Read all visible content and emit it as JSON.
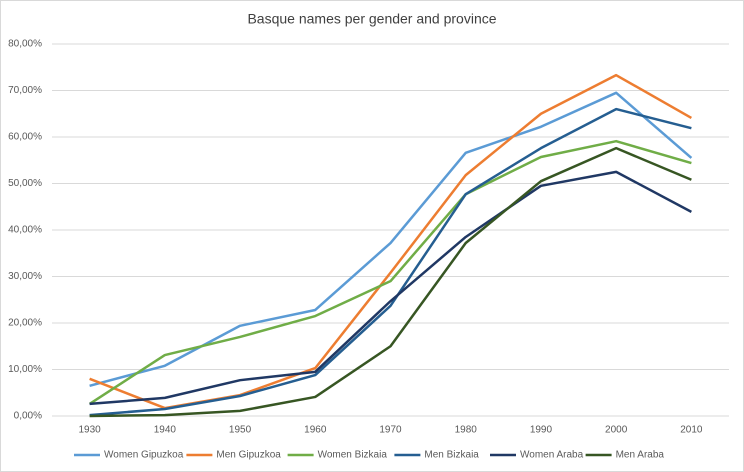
{
  "chart_data": {
    "type": "line",
    "title": "Basque names per gender and province",
    "categories": [
      "1930",
      "1940",
      "1950",
      "1960",
      "1970",
      "1980",
      "1990",
      "2000",
      "2010"
    ],
    "series": [
      {
        "name": "Women Gipuzkoa",
        "color": "#5b9bd5",
        "values": [
          6.5,
          10.8,
          19.4,
          22.8,
          37.2,
          56.6,
          62.2,
          69.5,
          55.5
        ]
      },
      {
        "name": "Men Gipuzkoa",
        "color": "#ed7d31",
        "values": [
          8.0,
          1.7,
          4.5,
          10.3,
          30.8,
          51.8,
          65.0,
          73.3,
          64.1
        ]
      },
      {
        "name": "Women Bizkaia",
        "color": "#70ad47",
        "values": [
          2.6,
          13.1,
          17.0,
          21.5,
          29.0,
          47.7,
          55.7,
          59.1,
          54.4
        ]
      },
      {
        "name": "Men Bizkaia",
        "color": "#255e91",
        "values": [
          0.2,
          1.5,
          4.3,
          8.8,
          23.7,
          47.7,
          57.6,
          66.0,
          61.9
        ]
      },
      {
        "name": "Women Araba",
        "color": "#203864",
        "values": [
          2.6,
          3.9,
          7.7,
          9.5,
          24.7,
          38.5,
          49.5,
          52.5,
          43.9
        ]
      },
      {
        "name": "Men Araba",
        "color": "#375623",
        "values": [
          0.0,
          0.2,
          1.1,
          4.1,
          15.0,
          37.2,
          50.5,
          57.6,
          50.8
        ]
      }
    ],
    "ylim": [
      0,
      80
    ],
    "yticks": [
      {
        "value": 0,
        "label": "0,00%"
      },
      {
        "value": 10,
        "label": "10,00%"
      },
      {
        "value": 20,
        "label": "20,00%"
      },
      {
        "value": 30,
        "label": "30,00%"
      },
      {
        "value": 40,
        "label": "40,00%"
      },
      {
        "value": 50,
        "label": "50,00%"
      },
      {
        "value": 60,
        "label": "60,00%"
      },
      {
        "value": 70,
        "label": "70,00%"
      },
      {
        "value": 80,
        "label": "80,00%"
      }
    ],
    "grid": true,
    "legend": "bottom"
  }
}
